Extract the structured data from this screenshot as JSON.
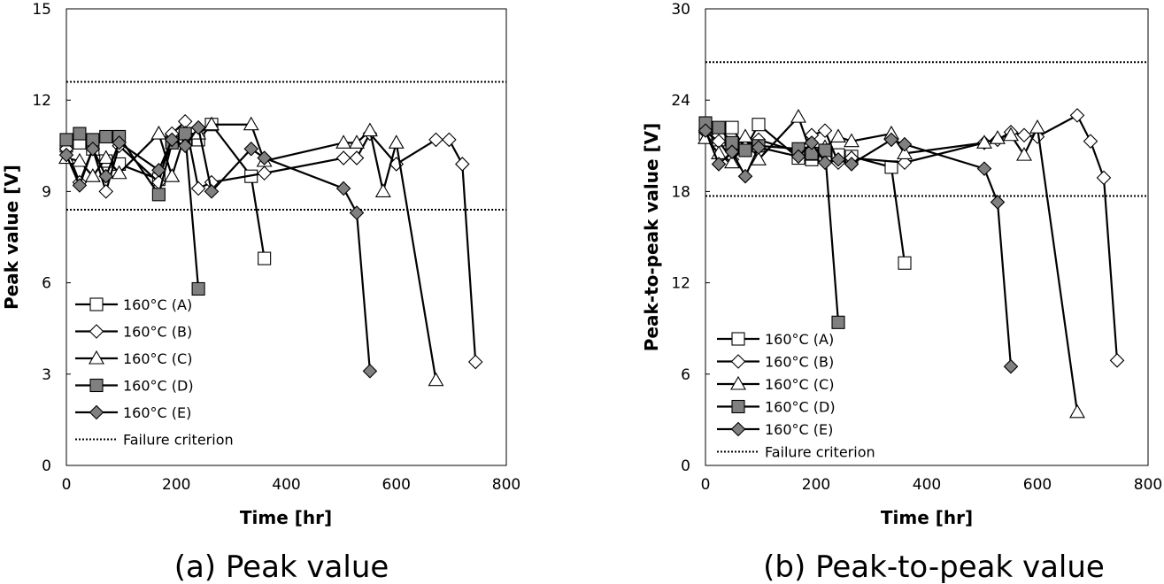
{
  "chart_data": [
    {
      "type": "line",
      "caption": "(a) Peak value",
      "xlabel": "Time [hr]",
      "ylabel": "Peak value [V]",
      "xlim": [
        0,
        800
      ],
      "ylim": [
        0,
        15
      ],
      "xticks": [
        "0",
        "200",
        "400",
        "600",
        "800"
      ],
      "yticks": [
        "0",
        "3",
        "6",
        "9",
        "12",
        "15"
      ],
      "grid": false,
      "legend_position": "bottom-left",
      "reference_lines": [
        {
          "name": "Failure criterion",
          "y": 12.6,
          "style": "dotted"
        },
        {
          "name": "Failure criterion",
          "y": 8.4,
          "style": "dotted"
        }
      ],
      "series": [
        {
          "name": "160°C (A)",
          "marker": "square-open",
          "color": "#000000",
          "x": [
            0,
            24,
            48,
            72,
            96,
            168,
            192,
            216,
            240,
            264,
            336,
            360
          ],
          "y": [
            10.5,
            10.6,
            10.4,
            10.0,
            9.9,
            9.4,
            10.7,
            10.7,
            10.7,
            11.2,
            9.5,
            6.8
          ]
        },
        {
          "name": "160°C (B)",
          "marker": "diamond-open",
          "color": "#000000",
          "x": [
            0,
            24,
            48,
            72,
            96,
            168,
            192,
            216,
            240,
            264,
            360,
            504,
            528,
            552,
            600,
            672,
            696,
            720,
            744
          ],
          "y": [
            10.4,
            9.3,
            10.4,
            9.0,
            10.5,
            9.3,
            10.9,
            11.3,
            9.1,
            9.3,
            9.6,
            10.1,
            10.1,
            10.9,
            9.9,
            10.7,
            10.7,
            9.9,
            3.4
          ]
        },
        {
          "name": "160°C (C)",
          "marker": "triangle-open",
          "color": "#000000",
          "x": [
            0,
            24,
            48,
            72,
            96,
            168,
            192,
            216,
            240,
            264,
            336,
            360,
            504,
            528,
            552,
            576,
            600,
            672
          ],
          "y": [
            10.1,
            10.0,
            9.5,
            10.1,
            9.6,
            10.9,
            9.5,
            10.9,
            10.9,
            11.2,
            11.2,
            10.0,
            10.6,
            10.6,
            11.0,
            9.0,
            10.6,
            2.8
          ]
        },
        {
          "name": "160°C (D)",
          "marker": "square-filled",
          "color": "#808080",
          "x": [
            0,
            24,
            48,
            72,
            96,
            168,
            192,
            216,
            240
          ],
          "y": [
            10.7,
            10.9,
            10.7,
            10.8,
            10.8,
            8.9,
            10.6,
            10.9,
            5.8
          ]
        },
        {
          "name": "160°C (E)",
          "marker": "diamond-filled",
          "color": "#808080",
          "x": [
            0,
            24,
            48,
            72,
            96,
            168,
            192,
            216,
            240,
            264,
            336,
            360,
            504,
            528,
            552
          ],
          "y": [
            10.2,
            9.2,
            10.4,
            9.5,
            10.6,
            9.7,
            10.7,
            10.5,
            11.1,
            9.0,
            10.4,
            10.1,
            9.1,
            8.3,
            3.1
          ]
        }
      ]
    },
    {
      "type": "line",
      "caption": "(b) Peak-to-peak value",
      "xlabel": "Time [hr]",
      "ylabel": "Peak-to-peak value [V]",
      "xlim": [
        0,
        800
      ],
      "ylim": [
        0,
        30
      ],
      "xticks": [
        "0",
        "200",
        "400",
        "600",
        "800"
      ],
      "yticks": [
        "0",
        "6",
        "12",
        "18",
        "24",
        "30"
      ],
      "grid": false,
      "legend_position": "bottom-left",
      "reference_lines": [
        {
          "name": "Failure criterion",
          "y": 26.5,
          "style": "dotted"
        },
        {
          "name": "Failure criterion",
          "y": 17.7,
          "style": "dotted"
        }
      ],
      "series": [
        {
          "name": "160°C (A)",
          "marker": "square-open",
          "color": "#000000",
          "x": [
            0,
            24,
            48,
            72,
            96,
            168,
            192,
            216,
            240,
            264,
            336,
            360
          ],
          "y": [
            21.8,
            21.4,
            22.2,
            20.8,
            22.4,
            20.2,
            20.1,
            20.3,
            20.4,
            20.3,
            19.6,
            13.3
          ]
        },
        {
          "name": "160°C (B)",
          "marker": "diamond-open",
          "color": "#000000",
          "x": [
            0,
            24,
            48,
            72,
            96,
            168,
            192,
            216,
            240,
            264,
            360,
            504,
            528,
            552,
            576,
            600,
            672,
            696,
            720,
            744
          ],
          "y": [
            21.9,
            21.3,
            20.1,
            20.9,
            21.4,
            20.6,
            21.7,
            22.0,
            19.9,
            20.2,
            19.9,
            21.2,
            21.4,
            21.9,
            21.7,
            21.6,
            23.0,
            21.3,
            18.9,
            6.9
          ]
        },
        {
          "name": "160°C (C)",
          "marker": "triangle-open",
          "color": "#000000",
          "x": [
            0,
            24,
            48,
            72,
            96,
            168,
            192,
            216,
            240,
            264,
            336,
            360,
            504,
            528,
            552,
            576,
            600,
            672
          ],
          "y": [
            21.5,
            20.5,
            19.9,
            21.6,
            20.1,
            22.9,
            20.4,
            20.9,
            21.6,
            21.3,
            21.8,
            20.5,
            21.2,
            21.5,
            21.7,
            20.4,
            22.2,
            3.5
          ]
        },
        {
          "name": "160°C (D)",
          "marker": "square-filled",
          "color": "#808080",
          "x": [
            0,
            24,
            48,
            72,
            96,
            168,
            192,
            216,
            240
          ],
          "y": [
            22.5,
            22.2,
            21.2,
            20.7,
            21.0,
            20.8,
            20.5,
            20.7,
            9.4
          ]
        },
        {
          "name": "160°C (E)",
          "marker": "diamond-filled",
          "color": "#808080",
          "x": [
            0,
            24,
            48,
            72,
            96,
            168,
            192,
            216,
            240,
            264,
            336,
            360,
            504,
            528,
            552
          ],
          "y": [
            22.0,
            19.8,
            20.6,
            19.0,
            20.9,
            20.3,
            21.2,
            19.9,
            20.1,
            19.8,
            21.4,
            21.1,
            19.5,
            17.3,
            6.5
          ]
        }
      ]
    }
  ]
}
